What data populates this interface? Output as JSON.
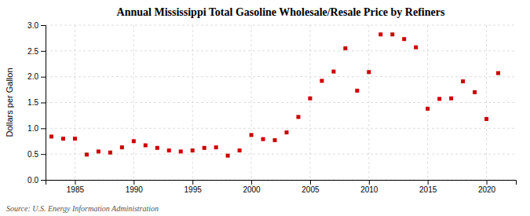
{
  "chart_data": {
    "type": "scatter",
    "title": "Annual Mississippi Total Gasoline Wholesale/Resale Price by Refiners",
    "ylabel": "Dollars per Gallon",
    "annotations": [
      "Source: U.S. Energy Information Administration"
    ],
    "x": [
      1983,
      1984,
      1985,
      1986,
      1987,
      1988,
      1989,
      1990,
      1991,
      1992,
      1993,
      1994,
      1995,
      1996,
      1997,
      1998,
      1999,
      2000,
      2001,
      2002,
      2003,
      2004,
      2005,
      2006,
      2007,
      2008,
      2009,
      2010,
      2011,
      2012,
      2013,
      2014,
      2015,
      2016,
      2017,
      2018,
      2019,
      2020,
      2021
    ],
    "values": [
      0.84,
      0.8,
      0.8,
      0.49,
      0.55,
      0.53,
      0.63,
      0.75,
      0.67,
      0.62,
      0.57,
      0.55,
      0.57,
      0.62,
      0.63,
      0.47,
      0.57,
      0.87,
      0.79,
      0.77,
      0.92,
      1.22,
      1.58,
      1.92,
      2.1,
      2.55,
      1.73,
      2.09,
      2.82,
      2.82,
      2.73,
      2.57,
      1.38,
      1.57,
      1.58,
      1.91,
      1.7,
      1.18,
      2.07
    ],
    "color": "#cc0000",
    "marker": "square",
    "xlim": [
      1982.5,
      2022.5
    ],
    "ylim": [
      0.0,
      3.0
    ],
    "xticks": [
      1985,
      1990,
      1995,
      2000,
      2005,
      2010,
      2015,
      2020
    ],
    "yticks": [
      {
        "value": 0.0,
        "label": "0.0"
      },
      0.5,
      {
        "value": 1.0,
        "label": "1.0"
      },
      1.5,
      {
        "value": 2.0,
        "label": "2.0"
      },
      2.5,
      {
        "value": 3.0,
        "label": "3.0"
      }
    ],
    "grid": true
  }
}
